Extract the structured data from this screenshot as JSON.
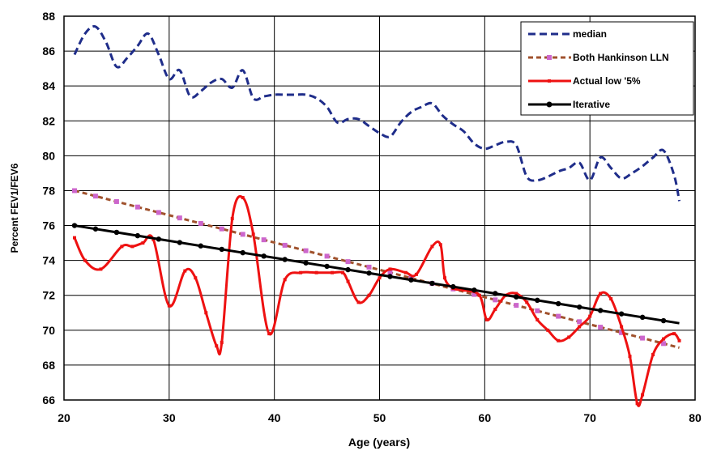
{
  "chart_data": {
    "type": "line",
    "xlabel": "Age (years)",
    "ylabel": "Percent FEV1/FEV6",
    "xlim": [
      20,
      80
    ],
    "ylim": [
      66,
      88
    ],
    "x_ticks": [
      "20",
      "30",
      "40",
      "50",
      "60",
      "70",
      "80"
    ],
    "y_ticks": [
      "66",
      "68",
      "70",
      "72",
      "74",
      "76",
      "78",
      "80",
      "82",
      "84",
      "86",
      "88"
    ],
    "grid": true,
    "legend_position": "top-right",
    "series": [
      {
        "name": "median",
        "color": "#1f2d8a",
        "style": "dashed",
        "x": [
          21,
          22,
          23,
          24,
          25,
          26,
          27,
          28,
          29,
          30,
          31,
          32,
          33,
          34,
          35,
          36,
          37,
          38,
          39,
          40,
          41,
          42,
          43,
          44,
          45,
          46,
          47,
          48,
          49,
          50,
          51,
          52,
          53,
          54,
          55,
          56,
          57,
          58,
          59,
          60,
          61,
          62,
          63,
          64,
          65,
          66,
          67,
          68,
          69,
          70,
          71,
          72,
          73,
          74,
          75,
          76,
          77,
          78,
          78.5
        ],
        "values": [
          85.8,
          87.0,
          87.4,
          86.5,
          85.1,
          85.6,
          86.3,
          87.0,
          85.8,
          84.4,
          84.9,
          83.4,
          83.7,
          84.2,
          84.4,
          83.9,
          84.9,
          83.3,
          83.4,
          83.5,
          83.5,
          83.5,
          83.5,
          83.3,
          82.8,
          81.9,
          82.1,
          82.1,
          81.7,
          81.3,
          81.1,
          81.9,
          82.5,
          82.8,
          83.0,
          82.3,
          81.8,
          81.4,
          80.7,
          80.4,
          80.6,
          80.8,
          80.6,
          78.8,
          78.6,
          78.8,
          79.1,
          79.3,
          79.6,
          78.6,
          79.9,
          79.3,
          78.7,
          79.0,
          79.4,
          79.9,
          80.3,
          78.9,
          77.4
        ]
      },
      {
        "name": "Both Hankinson LLN",
        "color": "#a0522d",
        "marker_color": "#cc66cc",
        "style": "dashed",
        "x": [
          21,
          78.5
        ],
        "values": [
          78.0,
          69.0
        ],
        "marker_step": 2
      },
      {
        "name": "Actual low '5%",
        "color": "#ee1111",
        "style": "solid",
        "x": [
          21,
          22,
          23.5,
          25.5,
          26.5,
          27.5,
          28.5,
          30,
          31.5,
          32.5,
          33.5,
          34.5,
          35,
          36,
          37,
          38,
          39.5,
          41,
          42.5,
          44,
          45.5,
          46.5,
          47,
          48,
          49,
          50,
          51,
          52.5,
          53.5,
          55,
          55.8,
          56.2,
          57,
          58,
          59.5,
          60.2,
          61,
          62,
          63,
          64,
          65,
          66,
          67,
          68,
          69,
          70,
          71,
          72,
          73,
          73.8,
          74.5,
          75,
          76,
          77,
          78,
          78.5
        ],
        "values": [
          75.3,
          74.0,
          73.5,
          74.8,
          74.8,
          75.0,
          75.2,
          71.4,
          73.4,
          73.0,
          71.0,
          69.1,
          69.3,
          76.4,
          77.6,
          75.5,
          69.8,
          72.9,
          73.3,
          73.3,
          73.3,
          73.3,
          72.8,
          71.6,
          72.0,
          73.0,
          73.5,
          73.3,
          73.2,
          74.8,
          74.9,
          73.0,
          72.4,
          72.3,
          72.0,
          70.6,
          71.2,
          72.0,
          72.1,
          71.6,
          70.6,
          70.0,
          69.4,
          69.6,
          70.2,
          70.8,
          72.1,
          71.8,
          70.2,
          68.5,
          65.8,
          66.3,
          68.6,
          69.5,
          69.8,
          69.4
        ]
      },
      {
        "name": "Iterative",
        "color": "#000000",
        "style": "solid",
        "x": [
          21,
          78.5
        ],
        "values": [
          76.0,
          70.4
        ],
        "marker_step": 2
      }
    ]
  }
}
